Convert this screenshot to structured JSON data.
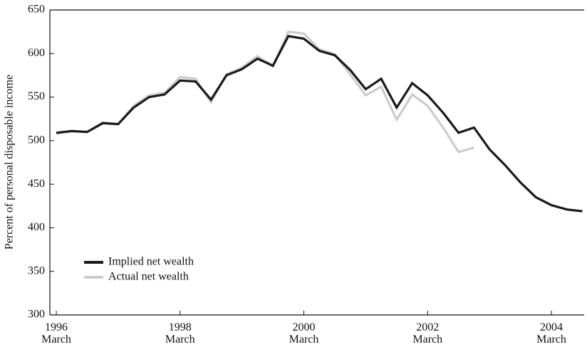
{
  "chart_data": {
    "type": "line",
    "y_label": "Percent of personal disposable income",
    "categories": [
      "1996\nMarch",
      null,
      null,
      null,
      null,
      null,
      null,
      null,
      "1998\nMarch",
      null,
      null,
      null,
      null,
      null,
      null,
      null,
      "2000\nMarch",
      null,
      null,
      null,
      null,
      null,
      null,
      null,
      "2002\nMarch",
      null,
      null,
      null,
      null,
      null,
      null,
      null,
      "2004\nMarch",
      null,
      null
    ],
    "series": [
      {
        "name": "Implied net wealth",
        "color": "#1a1a1a",
        "values": [
          509,
          511,
          510,
          520,
          519,
          538,
          550,
          553,
          569,
          568,
          547,
          575,
          582,
          594,
          586,
          620,
          617,
          603,
          598,
          581,
          559,
          571,
          538,
          566,
          552,
          532,
          509,
          515,
          490,
          472,
          452,
          435,
          426,
          421,
          419
        ]
      },
      {
        "name": "Actual net wealth",
        "color": "#cccccc",
        "values": [
          508,
          511,
          510,
          521,
          519,
          540,
          552,
          555,
          573,
          571,
          544,
          576,
          584,
          597,
          585,
          625,
          623,
          605,
          599,
          576,
          552,
          562,
          524,
          553,
          540,
          515,
          487,
          492,
          null,
          null,
          null,
          null,
          null,
          null,
          null
        ]
      }
    ],
    "ylim": [
      300,
      650
    ],
    "yticks": [
      300,
      350,
      400,
      450,
      500,
      550,
      600,
      650
    ],
    "grid": false
  }
}
